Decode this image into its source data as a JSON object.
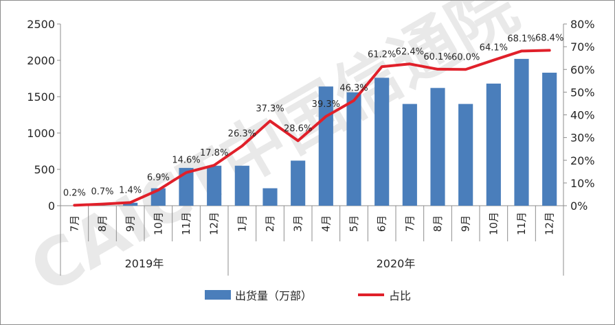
{
  "chart_data": {
    "type": "bar",
    "categories": [
      "7月",
      "8月",
      "9月",
      "10月",
      "11月",
      "12月",
      "1月",
      "2月",
      "3月",
      "4月",
      "5月",
      "6月",
      "7月",
      "8月",
      "9月",
      "10月",
      "11月",
      "12月"
    ],
    "groups": [
      {
        "label": "2019年",
        "count": 6
      },
      {
        "label": "2020年",
        "count": 12
      }
    ],
    "series": [
      {
        "name": "出货量（万部）",
        "type": "bar",
        "axis": "left",
        "color": "#4a7ebb",
        "values": [
          0,
          0,
          40,
          240,
          520,
          550,
          550,
          240,
          620,
          1640,
          1560,
          1760,
          1400,
          1620,
          1400,
          1680,
          2020,
          1830
        ]
      },
      {
        "name": "占比",
        "type": "line",
        "axis": "right",
        "color": "#e0202a",
        "values": [
          0.2,
          0.7,
          1.4,
          6.9,
          14.6,
          17.8,
          26.3,
          37.3,
          28.6,
          39.3,
          46.3,
          61.2,
          62.4,
          60.1,
          60.0,
          64.1,
          68.1,
          68.4
        ],
        "labels": [
          "0.2%",
          "0.7%",
          "1.4%",
          "6.9%",
          "14.6%",
          "17.8%",
          "26.3%",
          "37.3%",
          "28.6%",
          "39.3%",
          "46.3%",
          "61.2%",
          "62.4%",
          "60.1%",
          "60.0%",
          "64.1%",
          "68.1%",
          "68.4%"
        ]
      }
    ],
    "ylim": [
      0,
      2500
    ],
    "yticks": [
      "0",
      "500",
      "1000",
      "1500",
      "2000",
      "2500"
    ],
    "y2lim": [
      0,
      80
    ],
    "y2ticks": [
      "0%",
      "10%",
      "20%",
      "30%",
      "40%",
      "50%",
      "60%",
      "70%",
      "80%"
    ],
    "grid": false,
    "legend_position": "bottom"
  },
  "watermark": "CAICT中国信通院"
}
